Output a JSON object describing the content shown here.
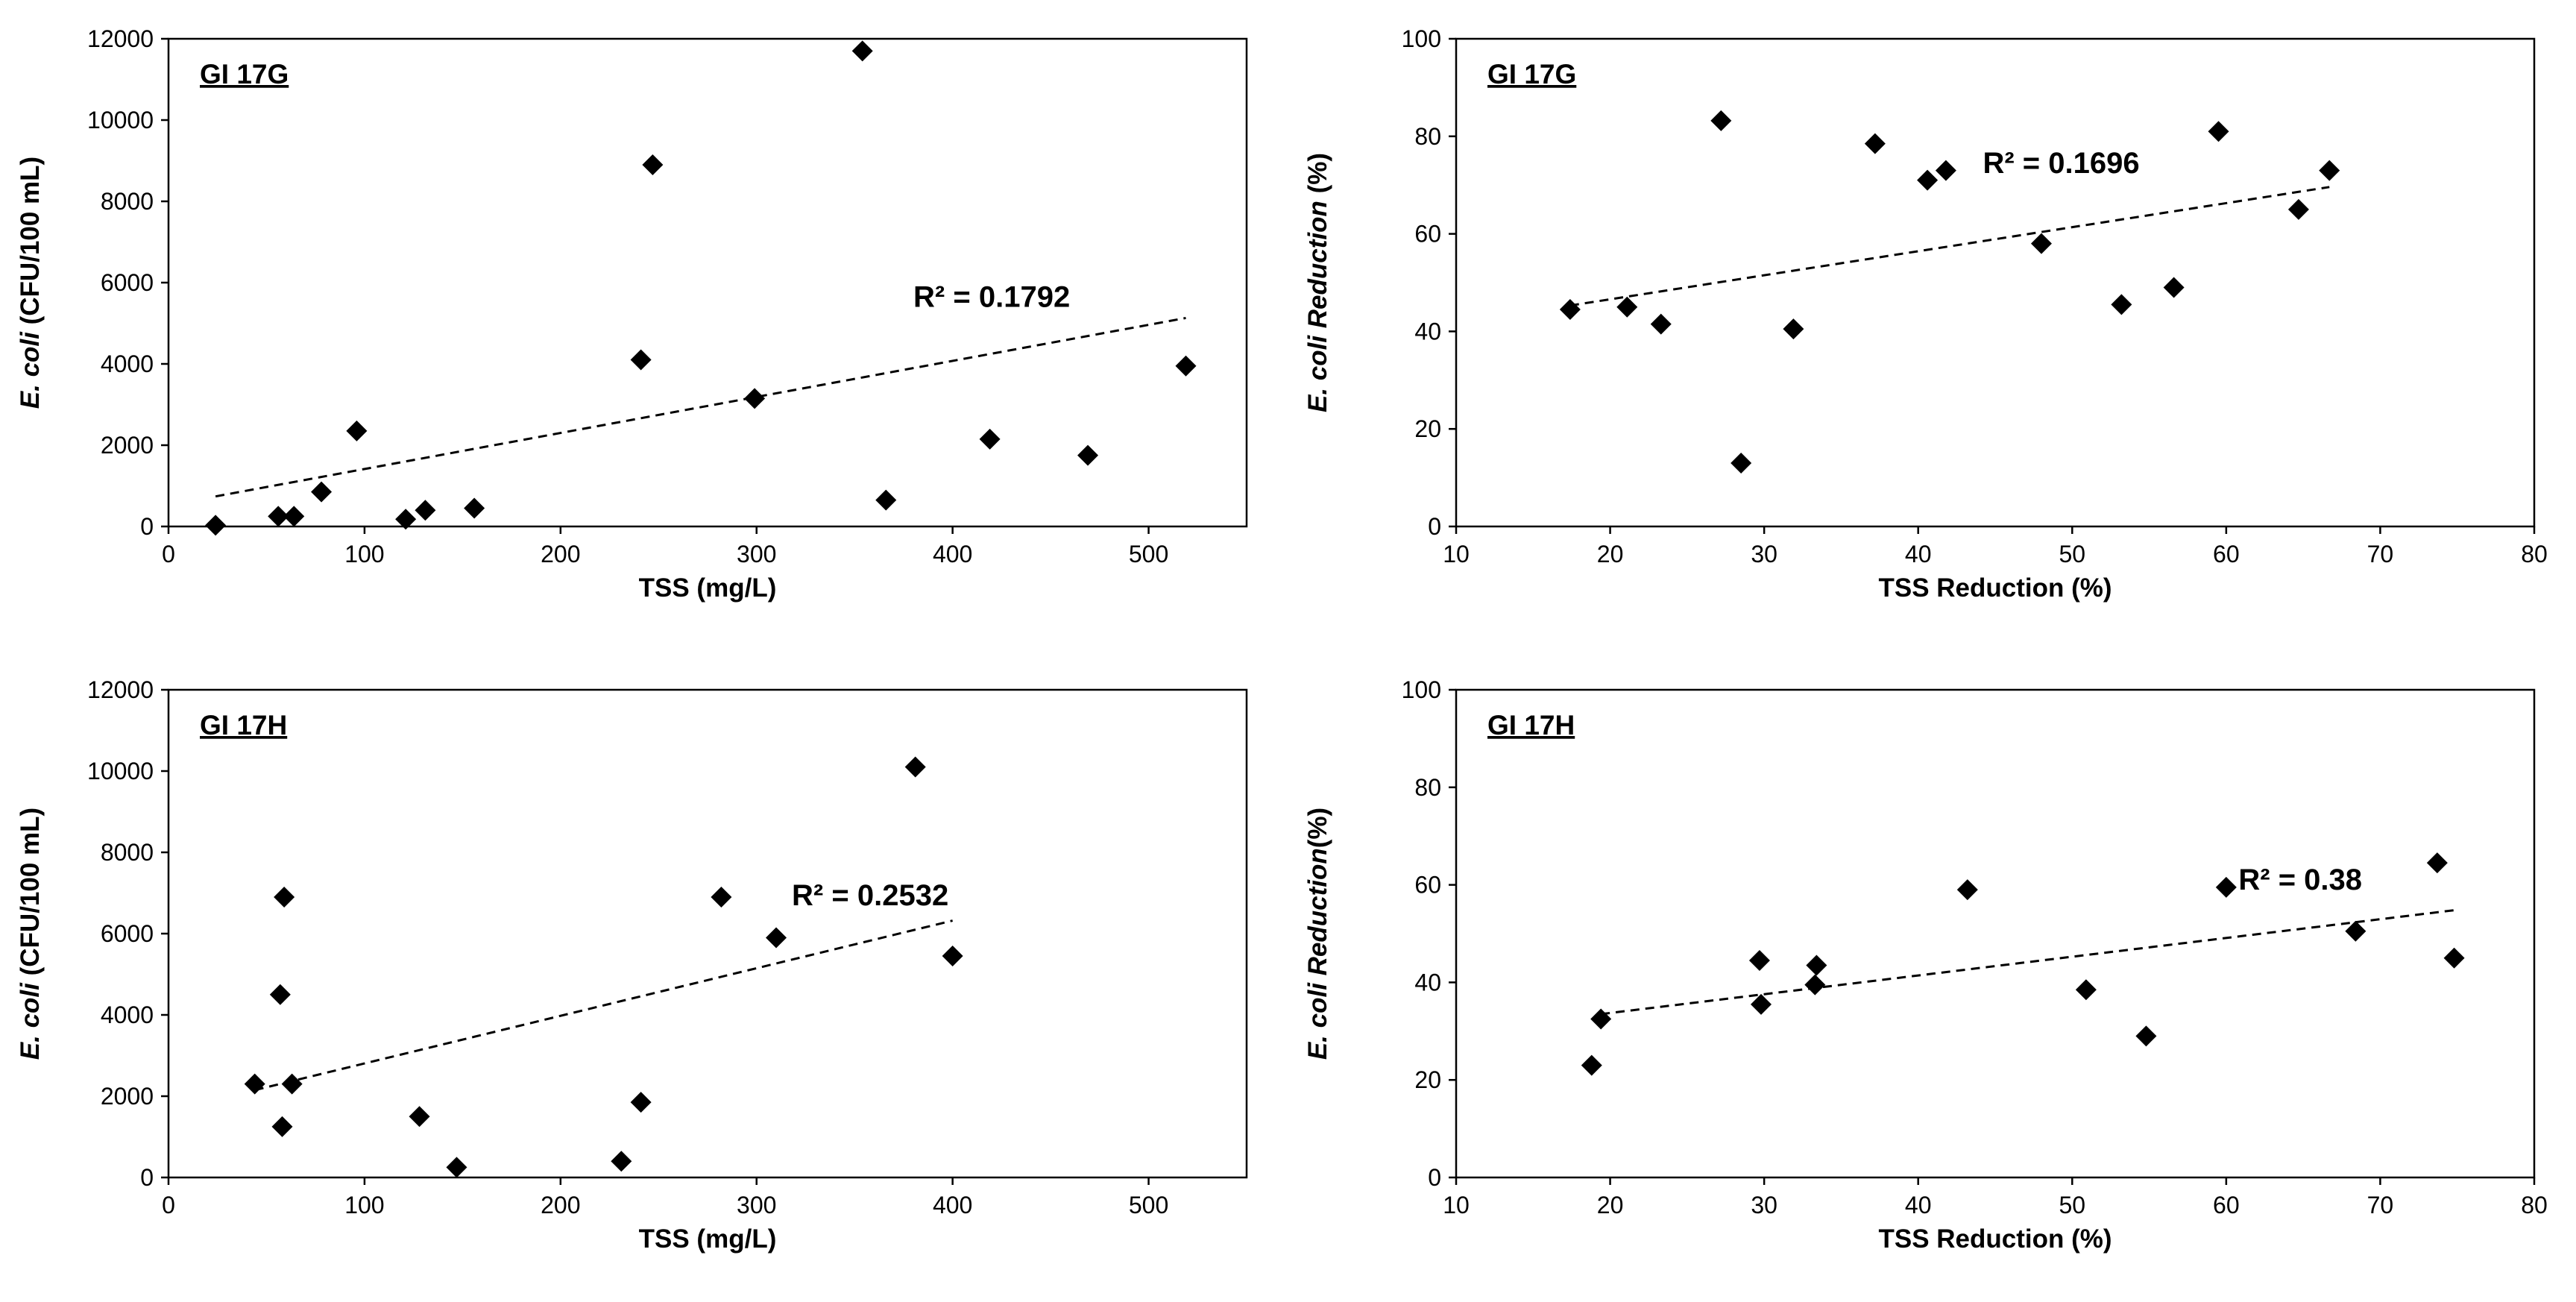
{
  "chart_data": [
    {
      "type": "scatter",
      "title": "GI 17G",
      "xlabel": "TSS (mg/L)",
      "ylabel_italic": "E. coli",
      "ylabel_rest": " (CFU/100 mL)",
      "xlim": [
        0,
        550
      ],
      "ylim": [
        0,
        12000
      ],
      "xticks": [
        0,
        100,
        200,
        300,
        400,
        500
      ],
      "yticks": [
        0,
        2000,
        4000,
        6000,
        8000,
        10000,
        12000
      ],
      "points": [
        [
          24,
          30
        ],
        [
          56,
          250
        ],
        [
          64,
          250
        ],
        [
          78,
          850
        ],
        [
          96,
          2350
        ],
        [
          121,
          180
        ],
        [
          131,
          400
        ],
        [
          156,
          450
        ],
        [
          241,
          4100
        ],
        [
          247,
          8900
        ],
        [
          299,
          3150
        ],
        [
          354,
          11700
        ],
        [
          366,
          650
        ],
        [
          419,
          2150
        ],
        [
          469,
          1750
        ],
        [
          519,
          3950
        ]
      ],
      "trendline": {
        "x": [
          24,
          519
        ],
        "y": [
          740,
          5130
        ]
      },
      "r2_text": "R² = 0.1792",
      "r2_anchor": [
        380,
        5400
      ]
    },
    {
      "type": "scatter",
      "title": "GI 17G",
      "xlabel": "TSS Reduction (%)",
      "ylabel_italic": "E. coli Reduction",
      "ylabel_rest": " (%)",
      "xlim": [
        10,
        80
      ],
      "ylim": [
        0,
        100
      ],
      "xticks": [
        10,
        20,
        30,
        40,
        50,
        60,
        70,
        80
      ],
      "yticks": [
        0,
        20,
        40,
        60,
        80,
        100
      ],
      "points": [
        [
          17.4,
          44.5
        ],
        [
          21.1,
          45
        ],
        [
          23.3,
          41.5
        ],
        [
          27.2,
          83.2
        ],
        [
          28.5,
          13
        ],
        [
          31.9,
          40.5
        ],
        [
          37.2,
          78.5
        ],
        [
          40.6,
          71
        ],
        [
          41.8,
          73
        ],
        [
          48,
          58
        ],
        [
          53.2,
          45.5
        ],
        [
          56.6,
          49
        ],
        [
          59.5,
          81
        ],
        [
          64.7,
          65
        ],
        [
          66.7,
          73
        ]
      ],
      "trendline": {
        "x": [
          17.4,
          66.7
        ],
        "y": [
          45.3,
          69.6
        ]
      },
      "r2_text": "R² = 0.1696",
      "r2_anchor": [
        44.2,
        72.5
      ]
    },
    {
      "type": "scatter",
      "title": "GI 17H",
      "xlabel": "TSS (mg/L)",
      "ylabel_italic": "E. coli",
      "ylabel_rest": " (CFU/100 mL)",
      "xlim": [
        0,
        550
      ],
      "ylim": [
        0,
        12000
      ],
      "xticks": [
        0,
        100,
        200,
        300,
        400,
        500
      ],
      "yticks": [
        0,
        2000,
        4000,
        6000,
        8000,
        10000,
        12000
      ],
      "points": [
        [
          44,
          2300
        ],
        [
          57,
          4500
        ],
        [
          58,
          1250
        ],
        [
          59,
          6900
        ],
        [
          63,
          2300
        ],
        [
          128,
          1500
        ],
        [
          147,
          250
        ],
        [
          231,
          400
        ],
        [
          241,
          1850
        ],
        [
          282,
          6900
        ],
        [
          310,
          5900
        ],
        [
          381,
          10100
        ],
        [
          400,
          5450
        ]
      ],
      "trendline": {
        "x": [
          44,
          400
        ],
        "y": [
          2150,
          6320
        ]
      },
      "r2_text": "R² = 0.2532",
      "r2_anchor": [
        318,
        6700
      ]
    },
    {
      "type": "scatter",
      "title": "GI 17H",
      "xlabel": "TSS Reduction (%)",
      "ylabel_italic": "E. coli Reduction",
      "ylabel_rest": "(%)",
      "xlim": [
        10,
        80
      ],
      "ylim": [
        0,
        100
      ],
      "xticks": [
        10,
        20,
        30,
        40,
        50,
        60,
        70,
        80
      ],
      "yticks": [
        0,
        20,
        40,
        60,
        80,
        100
      ],
      "points": [
        [
          18.8,
          23
        ],
        [
          19.4,
          32.5
        ],
        [
          29.7,
          44.5
        ],
        [
          29.8,
          35.5
        ],
        [
          33.3,
          39.5
        ],
        [
          33.4,
          43.5
        ],
        [
          43.2,
          59
        ],
        [
          50.9,
          38.5
        ],
        [
          54.8,
          29
        ],
        [
          60,
          59.5
        ],
        [
          68.4,
          50.5
        ],
        [
          73.7,
          64.5
        ],
        [
          74.8,
          45
        ]
      ],
      "trendline": {
        "x": [
          19.4,
          74.8
        ],
        "y": [
          33.5,
          54.8
        ]
      },
      "r2_text": "R² = 0.38",
      "r2_anchor": [
        60.8,
        59
      ]
    }
  ]
}
